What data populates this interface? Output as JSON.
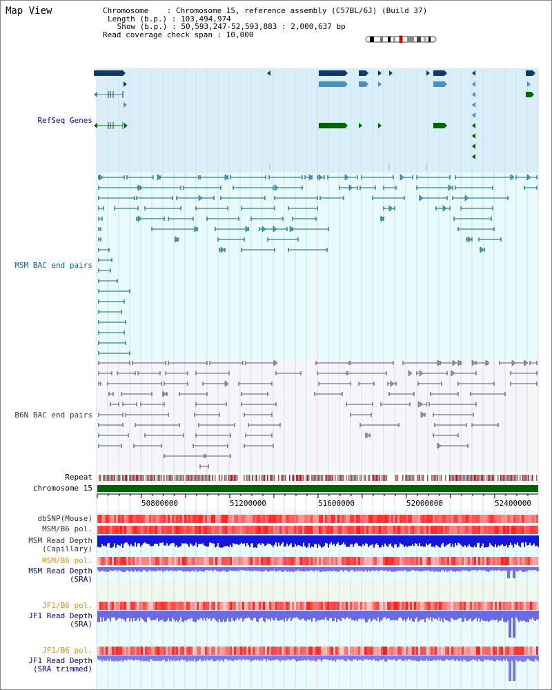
{
  "page": {
    "title": "Map View"
  },
  "info": {
    "line1": "Chromosome    : Chromosome 15, reference assembly (C57BL/6J) (Build 37)",
    "line2": "Length (b.p.) : 103,494,974",
    "line3": " Show (b.p.) : 50,593,247-52,593,883 : 2,000,637 bp",
    "line4": "Read coverage check span : 10,000"
  },
  "tracks": {
    "refseq": "RefSeq Genes",
    "msm_bac": "MSM BAC end pairs",
    "b6n_bac": "B6N BAC end pairs",
    "repeat": "Repeat",
    "chromosome": "chromosome 15",
    "dbsnp": "dbSNP(Mouse)",
    "msm_b6_pol_1": "MSM/B6 pol.",
    "msm_depth_cap_1": "MSM Read Depth",
    "msm_depth_cap_2": "(Capillary)",
    "msm_b6_pol_2": "MSM/B6 pol.",
    "msm_depth_sra_1": "MSM Read Depth",
    "msm_depth_sra_2": "(SRA)",
    "jf1_b6_pol_1": "JF1/B6 pol.",
    "jf1_depth_sra_1": "JF1 Read Depth",
    "jf1_depth_sra_2": "(SRA)",
    "jf1_b6_pol_2": "JF1/B6 pol.",
    "jf1_depth_trim_1": "JF1 Read Depth",
    "jf1_depth_trim_2": "(SRA trimmed)"
  },
  "axis": {
    "ticks": [
      "50800000",
      "51200000",
      "51600000",
      "52000000",
      "52400000"
    ]
  },
  "colors": {
    "refseq_bg": "#d8effa",
    "msm_bg": "#e8fbfb",
    "b6n_bg": "#f6f6fa",
    "gene_dark": "#0d3b66",
    "gene_light": "#4a90b8",
    "gene_green": "#006400",
    "label_blue": "#0000aa",
    "label_teal": "#006677",
    "label_gray": "#333355",
    "label_orange": "#e09000",
    "chrom_green": "#006400"
  }
}
